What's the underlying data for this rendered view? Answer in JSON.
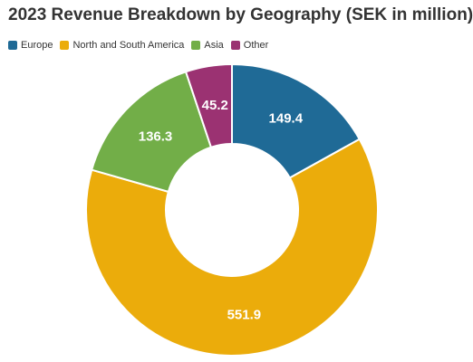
{
  "chart_data": {
    "type": "pie",
    "title": "2023 Revenue Breakdown by Geography (SEK in million)",
    "categories": [
      "Europe",
      "North and South America",
      "Asia",
      "Other"
    ],
    "values": [
      149.4,
      551.9,
      136.3,
      45.2
    ],
    "value_labels": [
      "149.4",
      "551.9",
      "136.3",
      "45.2"
    ],
    "colors": [
      "#1f6a96",
      "#ebac0b",
      "#72ae48",
      "#9b3272"
    ],
    "donut": true,
    "legend_position": "top-left"
  }
}
